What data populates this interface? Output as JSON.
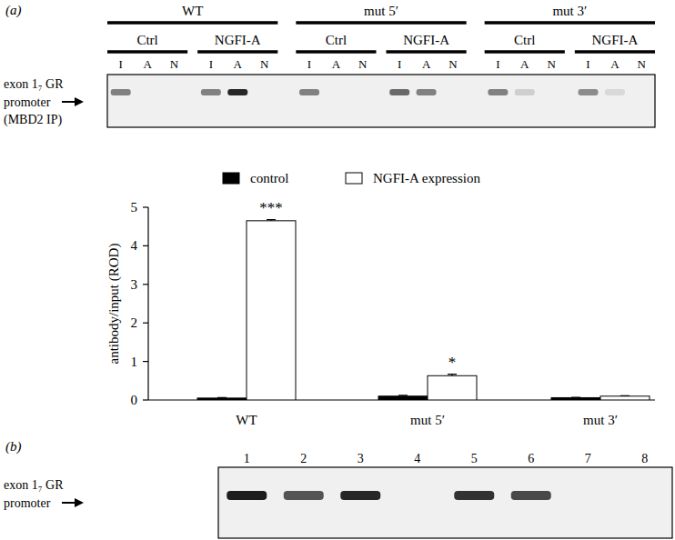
{
  "chart_data": {
    "type": "bar",
    "ylabel": "antibody/input (ROD)",
    "categories": [
      "WT",
      "mut 5′",
      "mut 3′"
    ],
    "series": [
      {
        "name": "control",
        "color": "#000000",
        "values": [
          0.05,
          0.1,
          0.06
        ],
        "errors": [
          0.01,
          0.02,
          0.01
        ]
      },
      {
        "name": "NGFI-A expression",
        "color": "#ffffff",
        "values": [
          4.65,
          0.63,
          0.1
        ],
        "errors": [
          0.03,
          0.04,
          0.01
        ]
      }
    ],
    "ylim": [
      0,
      5
    ],
    "yticks": [
      0,
      1,
      2,
      3,
      4,
      5
    ],
    "legend": "top",
    "annotations": [
      {
        "text": "***",
        "category": 0,
        "series": 1
      },
      {
        "text": "*",
        "category": 1,
        "series": 1
      }
    ]
  },
  "panel_a": {
    "label": "(a)",
    "row_label": [
      "exon 1₇ GR",
      "promoter",
      "(MBD2 IP)"
    ],
    "groups": [
      {
        "name": "WT",
        "conditions": [
          {
            "name": "Ctrl",
            "lanes": [
              {
                "name": "I",
                "intensity": 0.5
              },
              {
                "name": "A",
                "intensity": 0
              },
              {
                "name": "N",
                "intensity": 0
              }
            ]
          },
          {
            "name": "NGFI-A",
            "lanes": [
              {
                "name": "I",
                "intensity": 0.5
              },
              {
                "name": "A",
                "intensity": 0.9
              },
              {
                "name": "N",
                "intensity": 0
              }
            ]
          }
        ]
      },
      {
        "name": "mut 5′",
        "conditions": [
          {
            "name": "Ctrl",
            "lanes": [
              {
                "name": "I",
                "intensity": 0.5
              },
              {
                "name": "A",
                "intensity": 0
              },
              {
                "name": "N",
                "intensity": 0
              }
            ]
          },
          {
            "name": "NGFI-A",
            "lanes": [
              {
                "name": "I",
                "intensity": 0.6
              },
              {
                "name": "A",
                "intensity": 0.5
              },
              {
                "name": "N",
                "intensity": 0
              }
            ]
          }
        ]
      },
      {
        "name": "mut 3′",
        "conditions": [
          {
            "name": "Ctrl",
            "lanes": [
              {
                "name": "I",
                "intensity": 0.5
              },
              {
                "name": "A",
                "intensity": 0.15
              },
              {
                "name": "N",
                "intensity": 0
              }
            ]
          },
          {
            "name": "NGFI-A",
            "lanes": [
              {
                "name": "I",
                "intensity": 0.45
              },
              {
                "name": "A",
                "intensity": 0.1
              },
              {
                "name": "N",
                "intensity": 0
              }
            ]
          }
        ]
      }
    ]
  },
  "panel_b": {
    "label": "(b)",
    "row_label": [
      "exon 1₇ GR",
      "promoter"
    ],
    "lanes": [
      {
        "name": "1",
        "intensity": 0.95
      },
      {
        "name": "2",
        "intensity": 0.7
      },
      {
        "name": "3",
        "intensity": 0.9
      },
      {
        "name": "4",
        "intensity": 0
      },
      {
        "name": "5",
        "intensity": 0.85
      },
      {
        "name": "6",
        "intensity": 0.75
      },
      {
        "name": "7",
        "intensity": 0
      },
      {
        "name": "8",
        "intensity": 0
      }
    ]
  }
}
